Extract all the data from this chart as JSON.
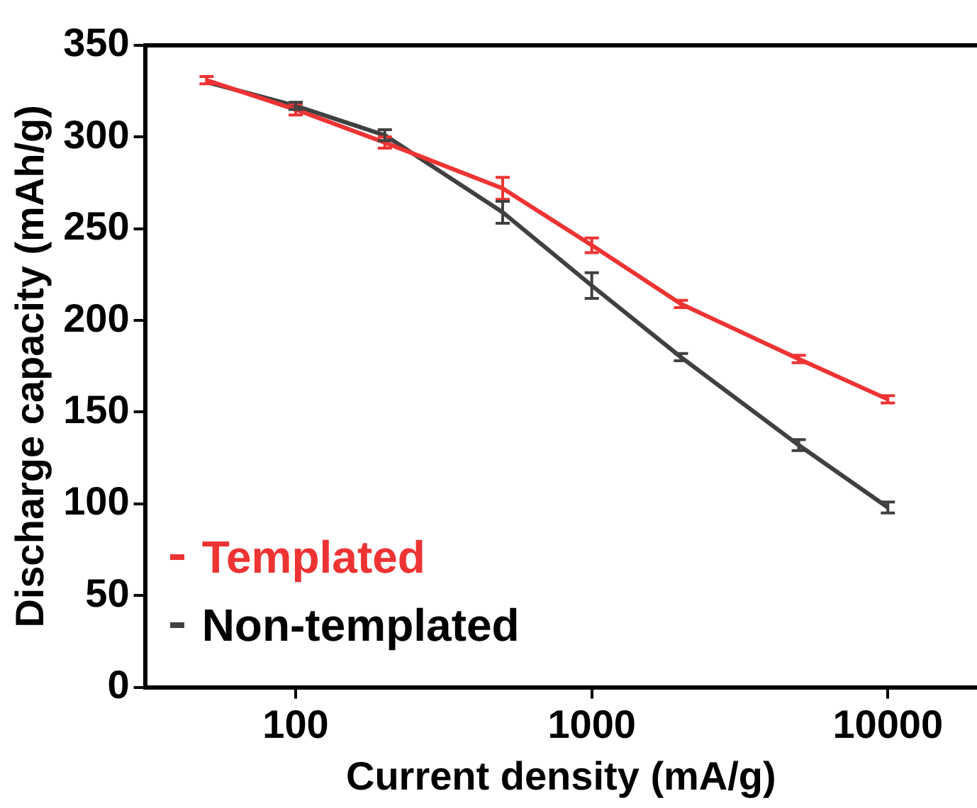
{
  "chart_data": {
    "type": "line",
    "xlabel": "Current density (mA/g)",
    "ylabel": "Discharge capacity (mAh/g)",
    "log": "x",
    "xlim": [
      31,
      20000
    ],
    "xticks": [
      100,
      1000,
      10000
    ],
    "ylim": [
      0,
      350
    ],
    "yticks": [
      0,
      50,
      100,
      150,
      200,
      250,
      300,
      350
    ],
    "grid": false,
    "legend": "bottom left",
    "line_style": "solid",
    "series": [
      {
        "name": "Templated",
        "color": "#ee3333",
        "x": [
          50,
          100,
          200,
          500,
          1000,
          2000,
          5000,
          10000
        ],
        "values": [
          331,
          315,
          297,
          272,
          241,
          209,
          179,
          157
        ],
        "errors": [
          2,
          3,
          3,
          6,
          4,
          2,
          2,
          2
        ]
      },
      {
        "name": "Non-templated",
        "color": "#404040",
        "x": [
          50,
          100,
          200,
          500,
          1000,
          2000,
          5000,
          10000
        ],
        "values": [
          330,
          317,
          301,
          259,
          219,
          180,
          132,
          98
        ],
        "errors": [
          null,
          2,
          3,
          6,
          7,
          2,
          3,
          3
        ]
      }
    ]
  }
}
